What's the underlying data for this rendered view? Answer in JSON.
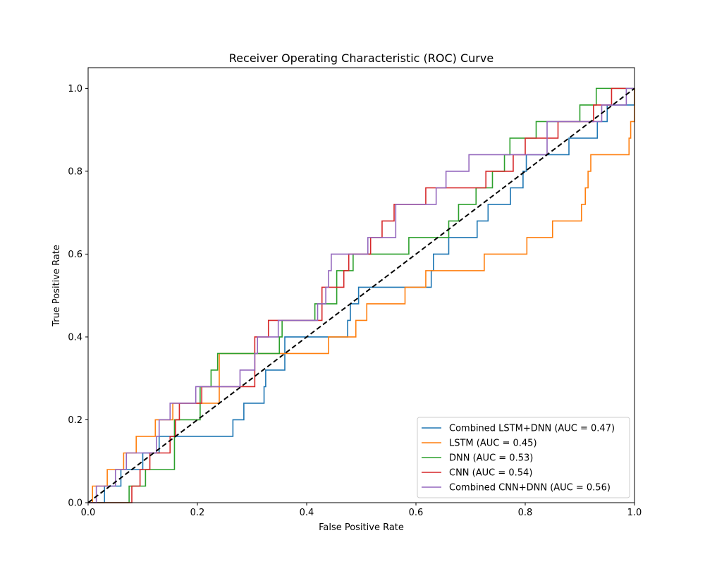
{
  "chart_data": {
    "type": "line",
    "title": "Receiver Operating Characteristic (ROC) Curve",
    "xlabel": "False Positive Rate",
    "ylabel": "True Positive Rate",
    "xlim": [
      0,
      1
    ],
    "ylim": [
      0,
      1.05
    ],
    "xticks": [
      0,
      0.2,
      0.4,
      0.6,
      0.8,
      1
    ],
    "yticks": [
      0,
      0.2,
      0.4,
      0.6,
      0.8,
      1
    ],
    "xtick_labels": [
      "0.0",
      "0.2",
      "0.4",
      "0.6",
      "0.8",
      "1.0"
    ],
    "ytick_labels": [
      "0.0",
      "0.2",
      "0.4",
      "0.6",
      "0.8",
      "1.0"
    ],
    "grid": false,
    "legend_position": "lower right",
    "reference_line": {
      "x": [
        0,
        1
      ],
      "y": [
        0,
        1
      ],
      "color": "#000000",
      "style": "dashed"
    },
    "series": [
      {
        "name": "Combined LSTM+DNN (AUC = 0.47)",
        "color": "#1f77b4",
        "points": [
          [
            0,
            0
          ],
          [
            0.03,
            0
          ],
          [
            0.03,
            0.04
          ],
          [
            0.06,
            0.04
          ],
          [
            0.06,
            0.08
          ],
          [
            0.1,
            0.08
          ],
          [
            0.1,
            0.12
          ],
          [
            0.13,
            0.12
          ],
          [
            0.13,
            0.16
          ],
          [
            0.265,
            0.16
          ],
          [
            0.265,
            0.2
          ],
          [
            0.285,
            0.2
          ],
          [
            0.285,
            0.24
          ],
          [
            0.322,
            0.24
          ],
          [
            0.322,
            0.28
          ],
          [
            0.325,
            0.28
          ],
          [
            0.325,
            0.32
          ],
          [
            0.36,
            0.32
          ],
          [
            0.36,
            0.4
          ],
          [
            0.475,
            0.4
          ],
          [
            0.475,
            0.44
          ],
          [
            0.48,
            0.44
          ],
          [
            0.48,
            0.48
          ],
          [
            0.495,
            0.48
          ],
          [
            0.495,
            0.52
          ],
          [
            0.628,
            0.52
          ],
          [
            0.628,
            0.56
          ],
          [
            0.632,
            0.56
          ],
          [
            0.632,
            0.6
          ],
          [
            0.66,
            0.6
          ],
          [
            0.66,
            0.64
          ],
          [
            0.712,
            0.64
          ],
          [
            0.712,
            0.68
          ],
          [
            0.732,
            0.68
          ],
          [
            0.732,
            0.72
          ],
          [
            0.773,
            0.72
          ],
          [
            0.773,
            0.76
          ],
          [
            0.796,
            0.76
          ],
          [
            0.796,
            0.8
          ],
          [
            0.802,
            0.8
          ],
          [
            0.802,
            0.84
          ],
          [
            0.88,
            0.84
          ],
          [
            0.88,
            0.88
          ],
          [
            0.932,
            0.88
          ],
          [
            0.932,
            0.92
          ],
          [
            0.95,
            0.92
          ],
          [
            0.95,
            0.96
          ],
          [
            1,
            0.96
          ],
          [
            1,
            1
          ]
        ]
      },
      {
        "name": "LSTM (AUC = 0.45)",
        "color": "#ff7f0e",
        "points": [
          [
            0,
            0
          ],
          [
            0.008,
            0
          ],
          [
            0.008,
            0.04
          ],
          [
            0.035,
            0.04
          ],
          [
            0.035,
            0.08
          ],
          [
            0.065,
            0.08
          ],
          [
            0.065,
            0.12
          ],
          [
            0.088,
            0.12
          ],
          [
            0.088,
            0.16
          ],
          [
            0.123,
            0.16
          ],
          [
            0.123,
            0.2
          ],
          [
            0.155,
            0.2
          ],
          [
            0.155,
            0.24
          ],
          [
            0.24,
            0.24
          ],
          [
            0.24,
            0.36
          ],
          [
            0.44,
            0.36
          ],
          [
            0.44,
            0.4
          ],
          [
            0.49,
            0.4
          ],
          [
            0.49,
            0.44
          ],
          [
            0.51,
            0.44
          ],
          [
            0.51,
            0.48
          ],
          [
            0.58,
            0.48
          ],
          [
            0.58,
            0.52
          ],
          [
            0.618,
            0.52
          ],
          [
            0.618,
            0.56
          ],
          [
            0.725,
            0.56
          ],
          [
            0.725,
            0.6
          ],
          [
            0.803,
            0.6
          ],
          [
            0.803,
            0.64
          ],
          [
            0.85,
            0.64
          ],
          [
            0.85,
            0.68
          ],
          [
            0.903,
            0.68
          ],
          [
            0.903,
            0.72
          ],
          [
            0.91,
            0.72
          ],
          [
            0.91,
            0.76
          ],
          [
            0.915,
            0.76
          ],
          [
            0.915,
            0.8
          ],
          [
            0.92,
            0.8
          ],
          [
            0.92,
            0.84
          ],
          [
            0.99,
            0.84
          ],
          [
            0.99,
            0.88
          ],
          [
            0.993,
            0.88
          ],
          [
            0.993,
            0.92
          ],
          [
            1,
            0.92
          ],
          [
            1,
            1
          ]
        ]
      },
      {
        "name": "DNN (AUC = 0.53)",
        "color": "#2ca02c",
        "points": [
          [
            0,
            0
          ],
          [
            0.075,
            0
          ],
          [
            0.075,
            0.04
          ],
          [
            0.105,
            0.04
          ],
          [
            0.105,
            0.08
          ],
          [
            0.158,
            0.08
          ],
          [
            0.158,
            0.2
          ],
          [
            0.205,
            0.2
          ],
          [
            0.205,
            0.28
          ],
          [
            0.225,
            0.28
          ],
          [
            0.225,
            0.32
          ],
          [
            0.237,
            0.32
          ],
          [
            0.237,
            0.36
          ],
          [
            0.35,
            0.36
          ],
          [
            0.35,
            0.4
          ],
          [
            0.355,
            0.4
          ],
          [
            0.355,
            0.44
          ],
          [
            0.415,
            0.44
          ],
          [
            0.415,
            0.48
          ],
          [
            0.455,
            0.48
          ],
          [
            0.455,
            0.56
          ],
          [
            0.485,
            0.56
          ],
          [
            0.485,
            0.6
          ],
          [
            0.587,
            0.6
          ],
          [
            0.587,
            0.64
          ],
          [
            0.66,
            0.64
          ],
          [
            0.66,
            0.68
          ],
          [
            0.678,
            0.68
          ],
          [
            0.678,
            0.72
          ],
          [
            0.71,
            0.72
          ],
          [
            0.71,
            0.76
          ],
          [
            0.74,
            0.76
          ],
          [
            0.74,
            0.8
          ],
          [
            0.762,
            0.8
          ],
          [
            0.762,
            0.84
          ],
          [
            0.772,
            0.84
          ],
          [
            0.772,
            0.88
          ],
          [
            0.82,
            0.88
          ],
          [
            0.82,
            0.92
          ],
          [
            0.9,
            0.92
          ],
          [
            0.9,
            0.96
          ],
          [
            0.93,
            0.96
          ],
          [
            0.93,
            1
          ],
          [
            1,
            1
          ]
        ]
      },
      {
        "name": "CNN (AUC = 0.54)",
        "color": "#d62728",
        "points": [
          [
            0,
            0
          ],
          [
            0.08,
            0
          ],
          [
            0.08,
            0.04
          ],
          [
            0.095,
            0.04
          ],
          [
            0.095,
            0.08
          ],
          [
            0.113,
            0.08
          ],
          [
            0.113,
            0.12
          ],
          [
            0.15,
            0.12
          ],
          [
            0.15,
            0.16
          ],
          [
            0.16,
            0.16
          ],
          [
            0.16,
            0.2
          ],
          [
            0.167,
            0.2
          ],
          [
            0.167,
            0.24
          ],
          [
            0.208,
            0.24
          ],
          [
            0.208,
            0.28
          ],
          [
            0.305,
            0.28
          ],
          [
            0.305,
            0.4
          ],
          [
            0.33,
            0.4
          ],
          [
            0.33,
            0.44
          ],
          [
            0.428,
            0.44
          ],
          [
            0.428,
            0.52
          ],
          [
            0.468,
            0.52
          ],
          [
            0.468,
            0.56
          ],
          [
            0.477,
            0.56
          ],
          [
            0.477,
            0.6
          ],
          [
            0.517,
            0.6
          ],
          [
            0.517,
            0.64
          ],
          [
            0.538,
            0.64
          ],
          [
            0.538,
            0.68
          ],
          [
            0.56,
            0.68
          ],
          [
            0.56,
            0.72
          ],
          [
            0.618,
            0.72
          ],
          [
            0.618,
            0.76
          ],
          [
            0.728,
            0.76
          ],
          [
            0.728,
            0.8
          ],
          [
            0.778,
            0.8
          ],
          [
            0.778,
            0.84
          ],
          [
            0.8,
            0.84
          ],
          [
            0.8,
            0.88
          ],
          [
            0.86,
            0.88
          ],
          [
            0.86,
            0.92
          ],
          [
            0.925,
            0.92
          ],
          [
            0.925,
            0.96
          ],
          [
            0.958,
            0.96
          ],
          [
            0.958,
            1
          ],
          [
            0.985,
            1
          ]
        ]
      },
      {
        "name": "Combined CNN+DNN (AUC = 0.56)",
        "color": "#9467bd",
        "points": [
          [
            0,
            0
          ],
          [
            0.015,
            0
          ],
          [
            0.015,
            0.04
          ],
          [
            0.05,
            0.04
          ],
          [
            0.05,
            0.08
          ],
          [
            0.07,
            0.08
          ],
          [
            0.07,
            0.12
          ],
          [
            0.125,
            0.12
          ],
          [
            0.125,
            0.16
          ],
          [
            0.13,
            0.16
          ],
          [
            0.13,
            0.2
          ],
          [
            0.15,
            0.2
          ],
          [
            0.15,
            0.24
          ],
          [
            0.197,
            0.24
          ],
          [
            0.197,
            0.28
          ],
          [
            0.278,
            0.28
          ],
          [
            0.278,
            0.32
          ],
          [
            0.305,
            0.32
          ],
          [
            0.305,
            0.36
          ],
          [
            0.31,
            0.36
          ],
          [
            0.31,
            0.4
          ],
          [
            0.348,
            0.4
          ],
          [
            0.348,
            0.44
          ],
          [
            0.42,
            0.44
          ],
          [
            0.42,
            0.48
          ],
          [
            0.435,
            0.48
          ],
          [
            0.435,
            0.52
          ],
          [
            0.44,
            0.52
          ],
          [
            0.44,
            0.56
          ],
          [
            0.445,
            0.56
          ],
          [
            0.445,
            0.6
          ],
          [
            0.512,
            0.6
          ],
          [
            0.512,
            0.64
          ],
          [
            0.563,
            0.64
          ],
          [
            0.563,
            0.72
          ],
          [
            0.637,
            0.72
          ],
          [
            0.637,
            0.76
          ],
          [
            0.655,
            0.76
          ],
          [
            0.655,
            0.8
          ],
          [
            0.697,
            0.8
          ],
          [
            0.697,
            0.84
          ],
          [
            0.84,
            0.84
          ],
          [
            0.84,
            0.92
          ],
          [
            0.94,
            0.92
          ],
          [
            0.94,
            0.96
          ],
          [
            0.985,
            0.96
          ],
          [
            0.985,
            1
          ],
          [
            1,
            1
          ]
        ]
      }
    ]
  }
}
